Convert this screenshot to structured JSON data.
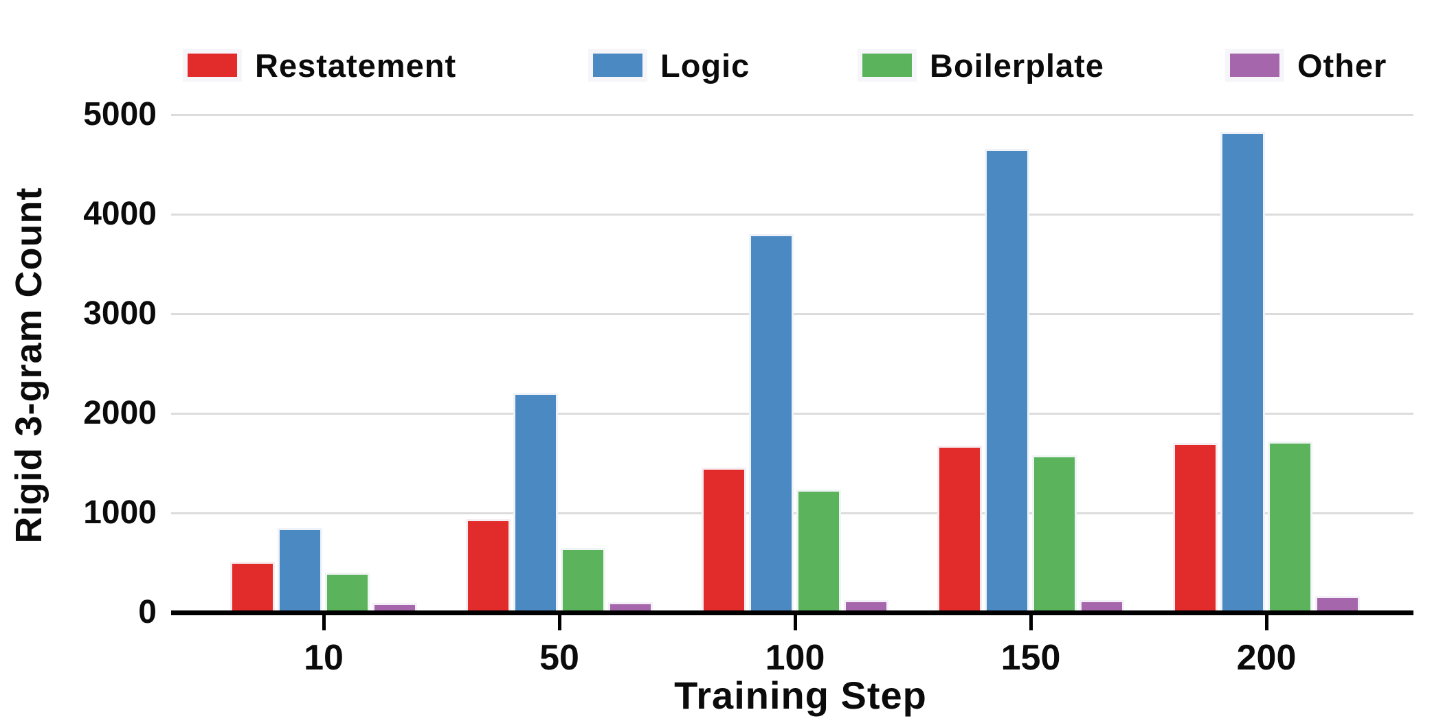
{
  "chart_data": {
    "type": "bar",
    "title": "",
    "xlabel": "Training Step",
    "ylabel": "Rigid 3-gram Count",
    "categories": [
      "10",
      "50",
      "100",
      "150",
      "200"
    ],
    "series": [
      {
        "name": "Restatement",
        "color": "#e22b2b",
        "values": [
          500,
          930,
          1450,
          1670,
          1700
        ]
      },
      {
        "name": "Logic",
        "color": "#4b89c2",
        "values": [
          840,
          2200,
          3790,
          4650,
          4820
        ]
      },
      {
        "name": "Boilerplate",
        "color": "#5bb45c",
        "values": [
          390,
          640,
          1230,
          1570,
          1710
        ]
      },
      {
        "name": "Other",
        "color": "#a666ac",
        "values": [
          90,
          100,
          120,
          120,
          160
        ]
      }
    ],
    "yticks": [
      0,
      1000,
      2000,
      3000,
      4000,
      5000
    ],
    "ylim": [
      0,
      5000
    ],
    "grid": true,
    "legend_position": "top"
  },
  "colors": {
    "grid": "#dcdcdc",
    "axis": "#000000",
    "text": "#0b0b0b",
    "background": "#ffffff"
  }
}
